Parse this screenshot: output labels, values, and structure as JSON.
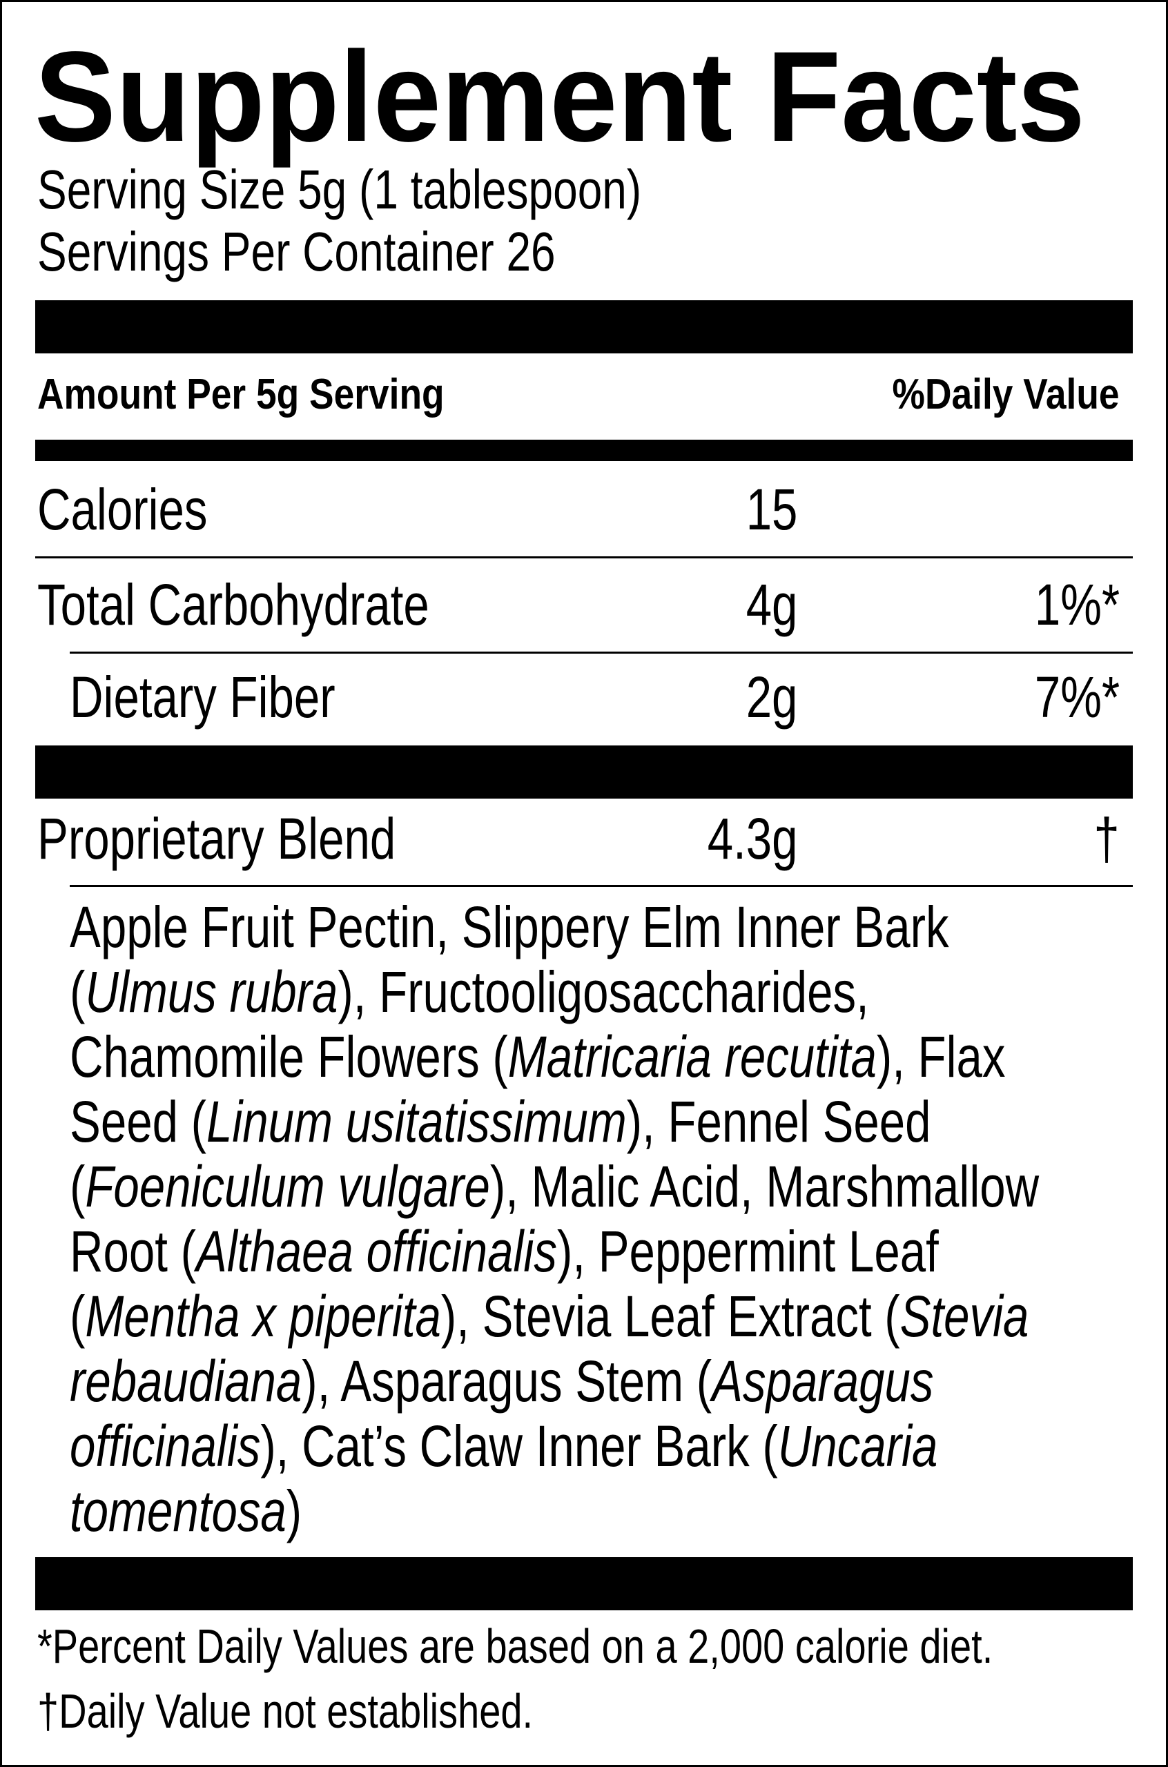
{
  "title": "Supplement Facts",
  "serving_size": "Serving Size 5g (1 tablespoon)",
  "servings_per_container": "Servings Per Container 26",
  "header": {
    "amount": "Amount Per 5g Serving",
    "daily_value": "%Daily Value"
  },
  "rows": [
    {
      "name": "Calories",
      "amount": "15",
      "dv": ""
    },
    {
      "name": "Total Carbohydrate",
      "amount": "4g",
      "dv": "1%*"
    },
    {
      "name": "Dietary Fiber",
      "amount": "2g",
      "dv": "7%*"
    },
    {
      "name": "Proprietary Blend",
      "amount": "4.3g",
      "dv": "†"
    }
  ],
  "ingredients_lines": [
    [
      {
        "text": "Apple Fruit Pectin, Slippery Elm Inner Bark",
        "italic": false
      }
    ],
    [
      {
        "text": "(",
        "italic": false
      },
      {
        "text": "Ulmus rubra",
        "italic": true
      },
      {
        "text": "), Fructooligosaccharides,",
        "italic": false
      }
    ],
    [
      {
        "text": "Chamomile Flowers (",
        "italic": false
      },
      {
        "text": "Matricaria recutita",
        "italic": true
      },
      {
        "text": "), Flax",
        "italic": false
      }
    ],
    [
      {
        "text": "Seed (",
        "italic": false
      },
      {
        "text": "Linum usitatissimum",
        "italic": true
      },
      {
        "text": "), Fennel Seed",
        "italic": false
      }
    ],
    [
      {
        "text": "(",
        "italic": false
      },
      {
        "text": "Foeniculum vulgare",
        "italic": true
      },
      {
        "text": "), Malic Acid, Marshmallow",
        "italic": false
      }
    ],
    [
      {
        "text": "Root (",
        "italic": false
      },
      {
        "text": "Althaea officinalis",
        "italic": true
      },
      {
        "text": "), Peppermint Leaf",
        "italic": false
      }
    ],
    [
      {
        "text": "(",
        "italic": false
      },
      {
        "text": "Mentha x piperita",
        "italic": true
      },
      {
        "text": "), Stevia Leaf Extract (",
        "italic": false
      },
      {
        "text": "Stevia",
        "italic": true
      }
    ],
    [
      {
        "text": "rebaudiana",
        "italic": true
      },
      {
        "text": "), Asparagus Stem (",
        "italic": false
      },
      {
        "text": "Asparagus",
        "italic": true
      }
    ],
    [
      {
        "text": "officinalis",
        "italic": true
      },
      {
        "text": "), Cat’s Claw Inner Bark (",
        "italic": false
      },
      {
        "text": "Uncaria",
        "italic": true
      }
    ],
    [
      {
        "text": "tomentosa",
        "italic": true
      },
      {
        "text": ")",
        "italic": false
      }
    ]
  ],
  "footnotes": {
    "percent": "*Percent Daily Values are based on a 2,000 calorie diet.",
    "dagger": "†Daily Value not established."
  }
}
